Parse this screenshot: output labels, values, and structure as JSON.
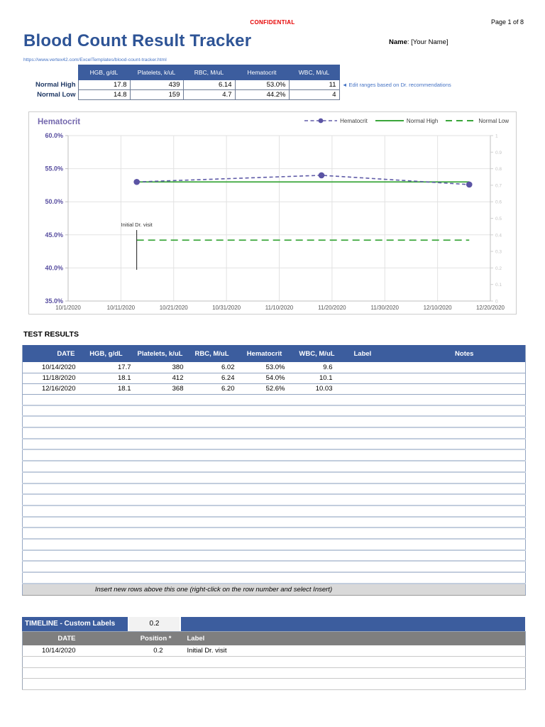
{
  "page": {
    "confidential": "CONFIDENTIAL",
    "page_number": "Page 1 of 8",
    "title": "Blood Count Result Tracker",
    "name_label": "Name",
    "name_suffix": ": [Your Name]",
    "url": "https://www.vertex42.com/ExcelTemplates/blood-count-tracker.html"
  },
  "ranges": {
    "columns": [
      "HGB, g/dL",
      "Platelets, k/uL",
      "RBC, M/uL",
      "Hematocrit",
      "WBC, M/uL"
    ],
    "rows": [
      {
        "label": "Normal High",
        "values": [
          "17.8",
          "439",
          "6.14",
          "53.0%",
          "11"
        ]
      },
      {
        "label": "Normal Low",
        "values": [
          "14.8",
          "159",
          "4.7",
          "44.2%",
          "4"
        ]
      }
    ],
    "note": "◄ Edit ranges based on Dr. recommendations"
  },
  "chart_data": {
    "type": "line",
    "title": "Hematocrit",
    "x_ticks": [
      "10/1/2020",
      "10/11/2020",
      "10/21/2020",
      "10/31/2020",
      "11/10/2020",
      "11/20/2020",
      "11/30/2020",
      "12/10/2020",
      "12/20/2020"
    ],
    "y_ticks_left": [
      "60.0%",
      "55.0%",
      "50.0%",
      "45.0%",
      "40.0%",
      "35.0%"
    ],
    "y_tick_left_values": [
      0.6,
      0.55,
      0.5,
      0.45,
      0.4,
      0.35
    ],
    "ylim_left": [
      0.35,
      0.6
    ],
    "y_ticks_right": [
      "1",
      "0.9",
      "0.8",
      "0.7",
      "0.6",
      "0.5",
      "0.4",
      "0.3",
      "0.2",
      "0.1",
      "0"
    ],
    "ylim_right": [
      0,
      1
    ],
    "grid": true,
    "legend_position": "top-right",
    "series": [
      {
        "name": "Hematocrit",
        "style": "dashed-marker",
        "color": "#605ca8",
        "x": [
          "10/14/2020",
          "11/18/2020",
          "12/16/2020"
        ],
        "values": [
          0.53,
          0.54,
          0.526
        ]
      },
      {
        "name": "Normal High",
        "style": "solid",
        "color": "#3aa63a",
        "value": 0.53
      },
      {
        "name": "Normal Low",
        "style": "dashed",
        "color": "#3aa63a",
        "value": 0.442
      }
    ],
    "annotation": {
      "label": "Initial Dr. visit",
      "date": "10/14/2020",
      "position": 0.2
    }
  },
  "test_results": {
    "heading": "TEST RESULTS",
    "columns": [
      "DATE",
      "HGB, g/dL",
      "Platelets, k/uL",
      "RBC, M/uL",
      "Hematocrit",
      "WBC, M/uL",
      "Label",
      "Notes"
    ],
    "rows": [
      [
        "10/14/2020",
        "17.7",
        "380",
        "6.02",
        "53.0%",
        "9.6",
        "",
        ""
      ],
      [
        "11/18/2020",
        "18.1",
        "412",
        "6.24",
        "54.0%",
        "10.1",
        "",
        ""
      ],
      [
        "12/16/2020",
        "18.1",
        "368",
        "6.20",
        "52.6%",
        "10.03",
        "",
        ""
      ]
    ],
    "empty_row_count": 17,
    "footer_note": "Insert new rows above this one (right-click on the row number and select Insert)"
  },
  "timeline": {
    "title": "TIMELINE - Custom Labels",
    "title_value": "0.2",
    "columns": [
      "DATE",
      "Position *",
      "Label"
    ],
    "rows": [
      [
        "10/14/2020",
        "0.2",
        "Initial Dr. visit"
      ]
    ],
    "empty_row_count": 3
  },
  "colors": {
    "header_blue": "#3c5d9e",
    "subheader_gray": "#7f7f7f",
    "title_blue": "#2e5496",
    "link_blue": "#4472c4",
    "confidential_red": "#e60000",
    "series_purple": "#605ca8",
    "series_green": "#3aa63a",
    "footer_row_gray": "#d9d9d9",
    "navy_label": "#1f3864"
  }
}
